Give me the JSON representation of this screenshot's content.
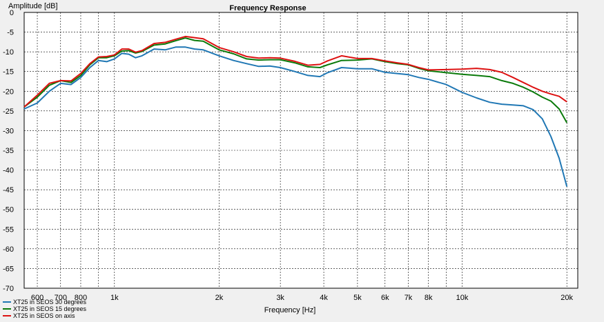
{
  "chart_data": {
    "type": "line",
    "title": "Frequency Response",
    "xlabel": "Frequency [Hz]",
    "ylabel": "Amplitude [dB]",
    "xscale": "log",
    "xlim": [
      550,
      21500
    ],
    "ylim": [
      -70,
      0
    ],
    "grid": true,
    "legend_position": "bottom-left",
    "y_ticks": [
      0,
      -5,
      -10,
      -15,
      -20,
      -25,
      -30,
      -35,
      -40,
      -45,
      -50,
      -55,
      -60,
      -65,
      -70
    ],
    "x_ticks": [
      {
        "value": 600,
        "label": "600"
      },
      {
        "value": 700,
        "label": "700"
      },
      {
        "value": 800,
        "label": "800"
      },
      {
        "value": 1000,
        "label": "1k"
      },
      {
        "value": 2000,
        "label": "2k"
      },
      {
        "value": 3000,
        "label": "3k"
      },
      {
        "value": 4000,
        "label": "4k"
      },
      {
        "value": 5000,
        "label": "5k"
      },
      {
        "value": 6000,
        "label": "6k"
      },
      {
        "value": 7000,
        "label": "7k"
      },
      {
        "value": 8000,
        "label": "8k"
      },
      {
        "value": 10000,
        "label": "10k"
      },
      {
        "value": 20000,
        "label": "20k"
      }
    ],
    "minor_x_gridlines": [
      900,
      9000
    ],
    "series": [
      {
        "name": "XT25 in SEOS 30 degrees",
        "color": "#1f77b4",
        "points": [
          [
            550,
            -24.5
          ],
          [
            600,
            -23
          ],
          [
            650,
            -20
          ],
          [
            700,
            -18
          ],
          [
            750,
            -18.3
          ],
          [
            800,
            -16.5
          ],
          [
            850,
            -14
          ],
          [
            900,
            -12.2
          ],
          [
            950,
            -12.5
          ],
          [
            1000,
            -11.8
          ],
          [
            1050,
            -10.4
          ],
          [
            1100,
            -10.6
          ],
          [
            1150,
            -11.5
          ],
          [
            1200,
            -11
          ],
          [
            1300,
            -9.3
          ],
          [
            1400,
            -9.5
          ],
          [
            1500,
            -8.8
          ],
          [
            1600,
            -8.8
          ],
          [
            1700,
            -9.3
          ],
          [
            1800,
            -9.5
          ],
          [
            2000,
            -11
          ],
          [
            2200,
            -12.2
          ],
          [
            2400,
            -13
          ],
          [
            2600,
            -13.7
          ],
          [
            2800,
            -13.6
          ],
          [
            3000,
            -14
          ],
          [
            3300,
            -15
          ],
          [
            3600,
            -16
          ],
          [
            3900,
            -16.3
          ],
          [
            4100,
            -15.3
          ],
          [
            4500,
            -14
          ],
          [
            5000,
            -14.3
          ],
          [
            5500,
            -14.3
          ],
          [
            6000,
            -15.2
          ],
          [
            6500,
            -15.5
          ],
          [
            7000,
            -15.8
          ],
          [
            7500,
            -16.5
          ],
          [
            8000,
            -17
          ],
          [
            9000,
            -18.3
          ],
          [
            10000,
            -20.3
          ],
          [
            11000,
            -21.7
          ],
          [
            12000,
            -22.8
          ],
          [
            13000,
            -23.3
          ],
          [
            14000,
            -23.5
          ],
          [
            15000,
            -23.7
          ],
          [
            16000,
            -24.7
          ],
          [
            17000,
            -27
          ],
          [
            18000,
            -31.5
          ],
          [
            19000,
            -37
          ],
          [
            20000,
            -44.2
          ]
        ]
      },
      {
        "name": "XT25 in SEOS 15 degrees",
        "color": "#0a7a0a",
        "points": [
          [
            550,
            -24
          ],
          [
            600,
            -21.5
          ],
          [
            650,
            -18.5
          ],
          [
            700,
            -17.3
          ],
          [
            750,
            -17.8
          ],
          [
            800,
            -16
          ],
          [
            850,
            -13.3
          ],
          [
            900,
            -11.5
          ],
          [
            950,
            -11.5
          ],
          [
            1000,
            -11
          ],
          [
            1050,
            -9.8
          ],
          [
            1100,
            -9.7
          ],
          [
            1150,
            -10.3
          ],
          [
            1200,
            -9.9
          ],
          [
            1300,
            -8.3
          ],
          [
            1400,
            -8
          ],
          [
            1500,
            -7.2
          ],
          [
            1600,
            -6.5
          ],
          [
            1700,
            -7.1
          ],
          [
            1800,
            -7.3
          ],
          [
            2000,
            -9.5
          ],
          [
            2200,
            -10.5
          ],
          [
            2400,
            -11.8
          ],
          [
            2600,
            -12.1
          ],
          [
            2800,
            -12
          ],
          [
            3000,
            -12
          ],
          [
            3300,
            -12.8
          ],
          [
            3600,
            -13.8
          ],
          [
            3900,
            -14
          ],
          [
            4100,
            -13.3
          ],
          [
            4500,
            -12.2
          ],
          [
            5000,
            -12.1
          ],
          [
            5500,
            -11.8
          ],
          [
            6000,
            -12.5
          ],
          [
            6500,
            -13
          ],
          [
            7000,
            -13.3
          ],
          [
            7500,
            -14.2
          ],
          [
            8000,
            -14.8
          ],
          [
            9000,
            -15.3
          ],
          [
            10000,
            -15.7
          ],
          [
            11000,
            -16
          ],
          [
            12000,
            -16.3
          ],
          [
            13000,
            -17.3
          ],
          [
            14000,
            -18
          ],
          [
            15000,
            -19
          ],
          [
            16000,
            -20.2
          ],
          [
            17000,
            -21.5
          ],
          [
            18000,
            -22.5
          ],
          [
            19000,
            -24.5
          ],
          [
            20000,
            -28
          ]
        ]
      },
      {
        "name": "XT25 in SEOS on axis",
        "color": "#dd1111",
        "points": [
          [
            550,
            -24
          ],
          [
            600,
            -21
          ],
          [
            650,
            -18
          ],
          [
            700,
            -17.3
          ],
          [
            750,
            -17.4
          ],
          [
            800,
            -15.5
          ],
          [
            850,
            -13
          ],
          [
            900,
            -11.3
          ],
          [
            950,
            -11.2
          ],
          [
            1000,
            -10.8
          ],
          [
            1050,
            -9.3
          ],
          [
            1100,
            -9.3
          ],
          [
            1150,
            -10.1
          ],
          [
            1200,
            -9.7
          ],
          [
            1300,
            -7.9
          ],
          [
            1400,
            -7.6
          ],
          [
            1500,
            -6.8
          ],
          [
            1600,
            -6.1
          ],
          [
            1700,
            -6.4
          ],
          [
            1800,
            -6.7
          ],
          [
            2000,
            -8.9
          ],
          [
            2200,
            -10
          ],
          [
            2400,
            -11.2
          ],
          [
            2600,
            -11.6
          ],
          [
            2800,
            -11.5
          ],
          [
            3000,
            -11.6
          ],
          [
            3300,
            -12.4
          ],
          [
            3600,
            -13.4
          ],
          [
            3900,
            -13.2
          ],
          [
            4100,
            -12.3
          ],
          [
            4500,
            -11
          ],
          [
            5000,
            -11.7
          ],
          [
            5500,
            -11.7
          ],
          [
            6000,
            -12.3
          ],
          [
            6500,
            -12.8
          ],
          [
            7000,
            -13.2
          ],
          [
            7500,
            -14
          ],
          [
            8000,
            -14.6
          ],
          [
            9000,
            -14.5
          ],
          [
            10000,
            -14.4
          ],
          [
            11000,
            -14.2
          ],
          [
            12000,
            -14.5
          ],
          [
            13000,
            -15.2
          ],
          [
            14000,
            -16.5
          ],
          [
            15000,
            -17.8
          ],
          [
            16000,
            -19
          ],
          [
            17000,
            -20
          ],
          [
            18000,
            -20.7
          ],
          [
            19000,
            -21.3
          ],
          [
            20000,
            -22.7
          ]
        ]
      }
    ]
  }
}
